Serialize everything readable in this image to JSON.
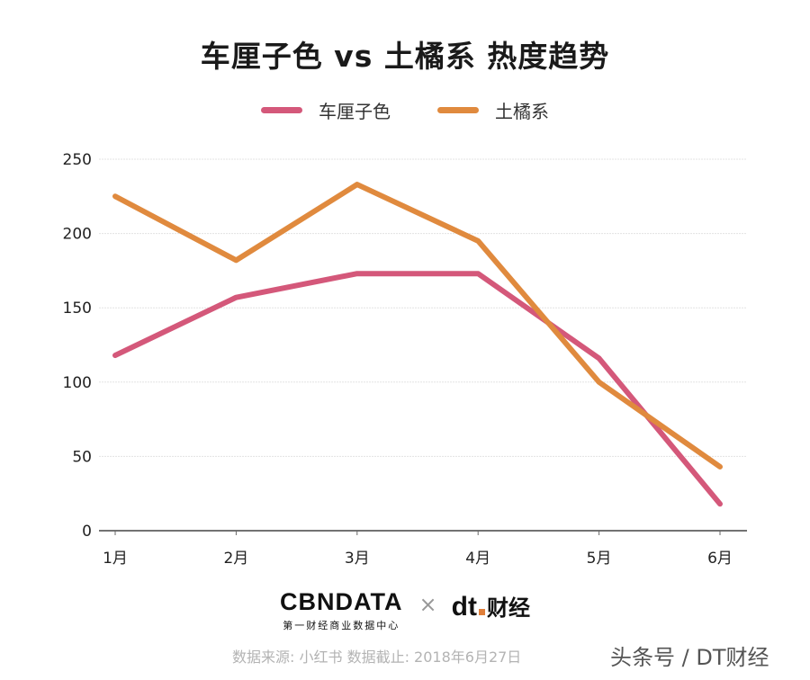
{
  "chart_data": {
    "type": "line",
    "title": "车厘子色 vs 土橘系 热度趋势",
    "xlabel": "",
    "ylabel": "",
    "categories": [
      "1月",
      "2月",
      "3月",
      "4月",
      "5月",
      "6月"
    ],
    "series": [
      {
        "name": "车厘子色",
        "color": "#d4587a",
        "values": [
          118,
          157,
          173,
          173,
          116,
          18
        ]
      },
      {
        "name": "土橘系",
        "color": "#e08a3e",
        "values": [
          225,
          182,
          233,
          195,
          100,
          43
        ]
      }
    ],
    "ylim": [
      0,
      250
    ],
    "yticks": [
      0,
      50,
      100,
      150,
      200,
      250
    ],
    "grid": true,
    "legend_position": "top-center"
  },
  "footer": {
    "brand1_main": "CBNDATA",
    "brand1_sub": "第一财经商业数据中心",
    "times": "×",
    "brand2_mark": "dt",
    "brand2_name": "财经",
    "source": "数据来源: 小红书 数据截止: 2018年6月27日",
    "watermark": "头条号 / DT财经"
  }
}
